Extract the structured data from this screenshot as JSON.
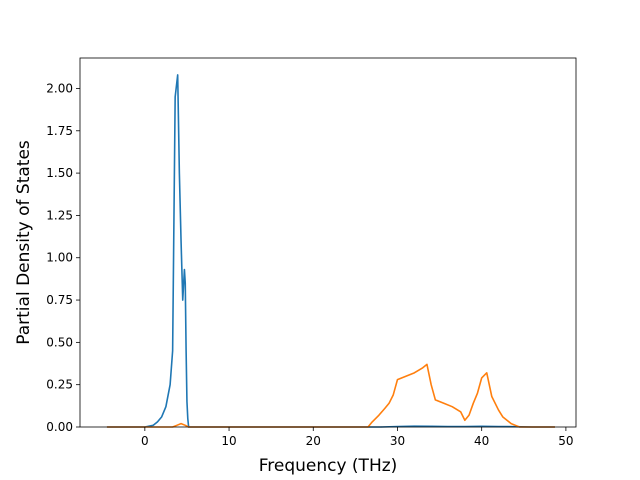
{
  "chart_data": {
    "type": "line",
    "title": "",
    "xlabel": "Frequency (THz)",
    "ylabel": "Partial Density of States",
    "xlim": [
      -7.7,
      51.2
    ],
    "ylim": [
      0,
      2.18
    ],
    "xticks": [
      0,
      10,
      20,
      30,
      40,
      50
    ],
    "yticks": [
      0.0,
      0.25,
      0.5,
      0.75,
      1.0,
      1.25,
      1.5,
      1.75,
      2.0
    ],
    "xtick_labels": [
      "0",
      "10",
      "20",
      "30",
      "40",
      "50"
    ],
    "ytick_labels": [
      "0.00",
      "0.25",
      "0.50",
      "0.75",
      "1.00",
      "1.25",
      "1.50",
      "1.75",
      "2.00"
    ],
    "grid": false,
    "legend": "none",
    "series": [
      {
        "color": "#1f77b4",
        "x": [
          -4.5,
          0.0,
          1.0,
          1.5,
          2.0,
          2.5,
          3.0,
          3.3,
          3.6,
          3.9,
          4.1,
          4.3,
          4.5,
          4.7,
          4.8,
          4.9,
          5.0,
          5.1,
          5.2,
          5.4,
          6.0,
          10,
          20,
          26,
          28,
          30,
          32,
          34,
          36,
          38,
          40,
          42,
          44,
          46,
          48.7
        ],
        "y": [
          0.0,
          0.0,
          0.01,
          0.03,
          0.06,
          0.12,
          0.25,
          0.45,
          1.95,
          2.08,
          1.5,
          1.1,
          0.75,
          0.93,
          0.85,
          0.45,
          0.15,
          0.05,
          0.0,
          0.0,
          0.0,
          0.0,
          0.0,
          0.0,
          0.0,
          0.003,
          0.005,
          0.004,
          0.003,
          0.003,
          0.004,
          0.003,
          0.002,
          0.0,
          0.0
        ]
      },
      {
        "color": "#ff7f0e",
        "x": [
          -4.5,
          3.3,
          3.8,
          4.3,
          4.8,
          5.2,
          6.0,
          10,
          20,
          26.5,
          27.0,
          27.8,
          28.5,
          29.0,
          29.5,
          30.0,
          31.0,
          32.0,
          33.0,
          33.5,
          34.0,
          34.5,
          35.5,
          36.5,
          37.5,
          38.0,
          38.5,
          39.0,
          39.5,
          40.0,
          40.6,
          41.2,
          42.0,
          42.5,
          43.0,
          43.5,
          44.0,
          44.5,
          46,
          48.7
        ],
        "y": [
          0.0,
          0.0,
          0.01,
          0.02,
          0.01,
          0.0,
          0.0,
          0.0,
          0.0,
          0.0,
          0.03,
          0.07,
          0.11,
          0.14,
          0.19,
          0.28,
          0.3,
          0.32,
          0.35,
          0.37,
          0.25,
          0.16,
          0.14,
          0.12,
          0.09,
          0.04,
          0.07,
          0.14,
          0.2,
          0.29,
          0.32,
          0.18,
          0.1,
          0.06,
          0.04,
          0.02,
          0.01,
          0.0,
          0.0,
          0.0
        ]
      }
    ]
  }
}
